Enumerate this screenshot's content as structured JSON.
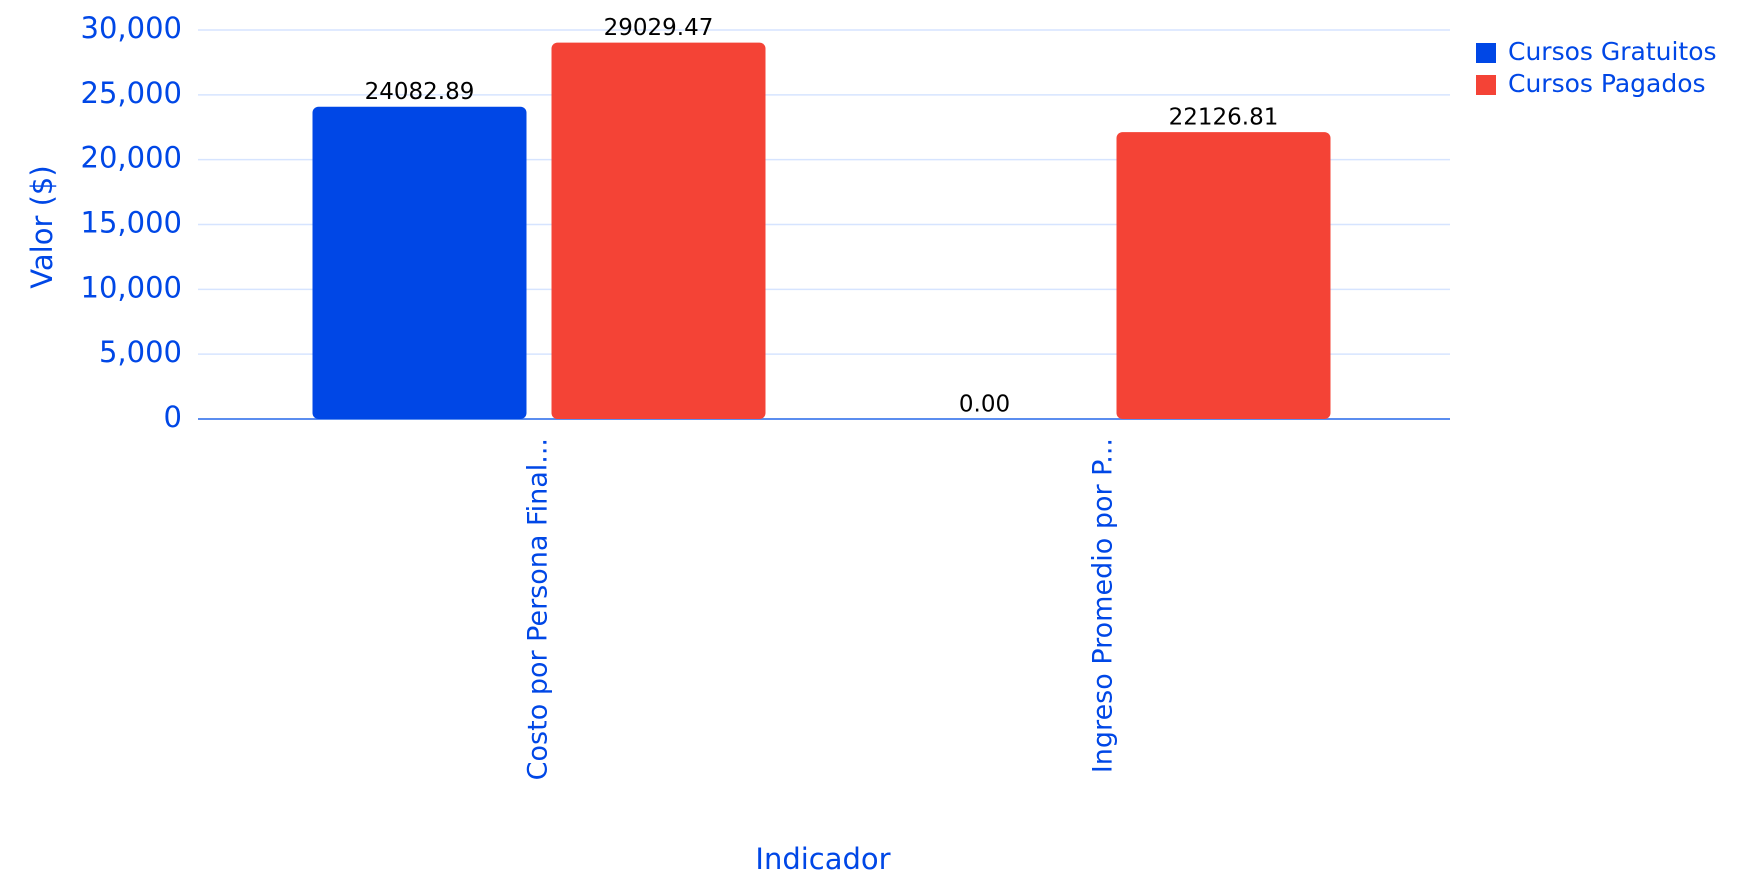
{
  "chart_data": {
    "type": "bar",
    "categories": [
      "Costo por Persona Final...",
      "Ingreso Promedio por P..."
    ],
    "series": [
      {
        "name": "Cursos Gratuitos",
        "color": "#0047e6",
        "values": [
          24082.89,
          0
        ],
        "value_labels": [
          "24082.89",
          "0.00"
        ]
      },
      {
        "name": "Cursos Pagados",
        "color": "#f44336",
        "values": [
          29029.47,
          22126.81
        ],
        "value_labels": [
          "29029.47",
          "22126.81"
        ]
      }
    ],
    "xlabel": "Indicador",
    "ylabel": "Valor ($)",
    "ylim": [
      0,
      30000
    ],
    "yticks": [
      0,
      {
        "value": 5000,
        "label": "5,000"
      },
      {
        "value": 10000,
        "label": "10,000"
      },
      {
        "value": 15000,
        "label": "15,000"
      },
      {
        "value": 20000,
        "label": "20,000"
      },
      {
        "value": 25000,
        "label": "25,000"
      },
      {
        "value": 30000,
        "label": "30,000"
      }
    ],
    "grid": true,
    "legend": "upper right"
  }
}
